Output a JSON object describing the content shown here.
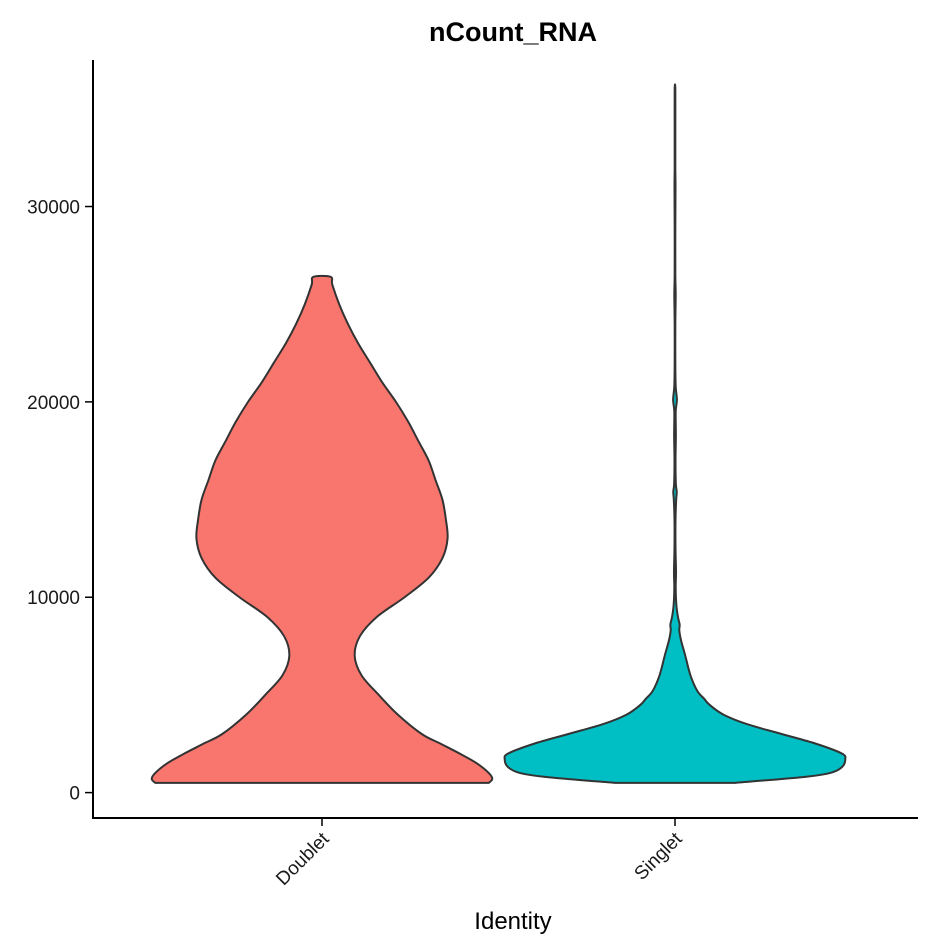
{
  "chart_data": {
    "type": "violin",
    "title": "nCount_RNA",
    "xlabel": "Identity",
    "ylabel": "",
    "categories": [
      "Doublet",
      "Singlet"
    ],
    "ylim": [
      -1300,
      37500
    ],
    "yticks": [
      0,
      10000,
      20000,
      30000
    ],
    "ytick_labels": [
      "0",
      "10000",
      "20000",
      "30000"
    ],
    "grid": false,
    "legend": "none",
    "series": [
      {
        "category": "Doublet",
        "color": "#F8766D",
        "range": [
          500,
          26400
        ],
        "density": [
          [
            500,
            0.97
          ],
          [
            700,
            0.99
          ],
          [
            1000,
            0.97
          ],
          [
            1500,
            0.9
          ],
          [
            2000,
            0.8
          ],
          [
            2500,
            0.69
          ],
          [
            3000,
            0.58
          ],
          [
            4000,
            0.44
          ],
          [
            5000,
            0.33
          ],
          [
            6000,
            0.23
          ],
          [
            7000,
            0.19
          ],
          [
            8000,
            0.22
          ],
          [
            9000,
            0.32
          ],
          [
            10000,
            0.48
          ],
          [
            11000,
            0.62
          ],
          [
            12000,
            0.7
          ],
          [
            13000,
            0.73
          ],
          [
            14000,
            0.72
          ],
          [
            15000,
            0.7
          ],
          [
            16000,
            0.66
          ],
          [
            17000,
            0.62
          ],
          [
            18000,
            0.56
          ],
          [
            19000,
            0.5
          ],
          [
            20000,
            0.43
          ],
          [
            21000,
            0.35
          ],
          [
            22000,
            0.28
          ],
          [
            23000,
            0.21
          ],
          [
            24000,
            0.15
          ],
          [
            25000,
            0.1
          ],
          [
            26000,
            0.06
          ],
          [
            26400,
            0.05
          ]
        ]
      },
      {
        "category": "Singlet",
        "color": "#00BFC4",
        "range": [
          500,
          36000
        ],
        "density": [
          [
            500,
            0.35
          ],
          [
            800,
            0.75
          ],
          [
            1000,
            0.9
          ],
          [
            1300,
            0.97
          ],
          [
            1700,
            0.99
          ],
          [
            2000,
            0.97
          ],
          [
            2500,
            0.82
          ],
          [
            3000,
            0.62
          ],
          [
            3500,
            0.42
          ],
          [
            4000,
            0.28
          ],
          [
            4500,
            0.2
          ],
          [
            4800,
            0.17
          ],
          [
            5200,
            0.13
          ],
          [
            6000,
            0.09
          ],
          [
            7000,
            0.06
          ],
          [
            7800,
            0.035
          ],
          [
            8300,
            0.025
          ],
          [
            8600,
            0.027
          ],
          [
            9000,
            0.017
          ],
          [
            9600,
            0.008
          ],
          [
            10500,
            0.004
          ],
          [
            11300,
            0.006
          ],
          [
            12500,
            0.003
          ],
          [
            14000,
            0.003
          ],
          [
            15000,
            0.007
          ],
          [
            15400,
            0.01
          ],
          [
            15800,
            0.005
          ],
          [
            17000,
            0.003
          ],
          [
            18300,
            0.005
          ],
          [
            19500,
            0.004
          ],
          [
            20100,
            0.011
          ],
          [
            20800,
            0.004
          ],
          [
            22000,
            0.002
          ],
          [
            24000,
            0.002
          ],
          [
            25500,
            0.004
          ],
          [
            26500,
            0.002
          ],
          [
            29000,
            0.002
          ],
          [
            31000,
            0.003
          ],
          [
            32000,
            0.002
          ],
          [
            34000,
            0.002
          ],
          [
            36000,
            0.002
          ]
        ]
      }
    ]
  }
}
